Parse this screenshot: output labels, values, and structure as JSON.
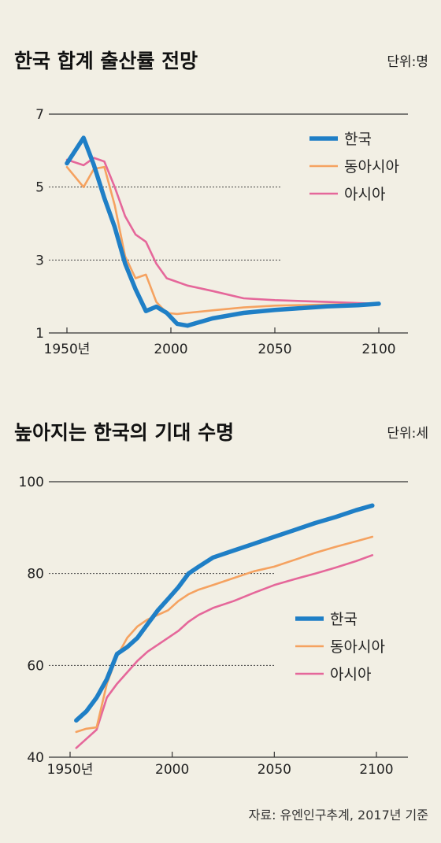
{
  "source": "자료: 유엔인구추계, 2017년 기준",
  "colors": {
    "korea": "#1f7fc6",
    "east_asia": "#f5a260",
    "asia": "#e5679a",
    "background": "#f2efe4"
  },
  "chart_data": [
    {
      "type": "line",
      "title": "한국 합계 출산률 전망",
      "unit": "단위:명",
      "x_tick_labels": [
        "1950년",
        "2000",
        "2050",
        "2100"
      ],
      "x_ticks": [
        1950,
        2000,
        2050,
        2100
      ],
      "y_tick_labels": [
        "1",
        "3",
        "5",
        "7"
      ],
      "y_ticks": [
        1,
        3,
        5,
        7
      ],
      "xlim": [
        1940,
        2115
      ],
      "ylim": [
        1,
        7
      ],
      "series": [
        {
          "name": "한국",
          "key": "korea",
          "x": [
            1950,
            1958,
            1963,
            1968,
            1973,
            1978,
            1983,
            1988,
            1993,
            1998,
            2003,
            2008,
            2020,
            2035,
            2050,
            2075,
            2090,
            2100
          ],
          "y": [
            5.65,
            6.35,
            5.6,
            4.7,
            3.9,
            2.9,
            2.2,
            1.6,
            1.72,
            1.55,
            1.25,
            1.2,
            1.4,
            1.55,
            1.63,
            1.73,
            1.76,
            1.8
          ]
        },
        {
          "name": "동아시아",
          "key": "east_asia",
          "x": [
            1950,
            1958,
            1963,
            1968,
            1973,
            1978,
            1983,
            1988,
            1993,
            1998,
            2003,
            2008,
            2020,
            2035,
            2050,
            2075,
            2090,
            2100
          ],
          "y": [
            5.55,
            5.0,
            5.5,
            5.55,
            4.5,
            3.1,
            2.5,
            2.6,
            1.85,
            1.55,
            1.52,
            1.55,
            1.62,
            1.7,
            1.75,
            1.78,
            1.79,
            1.8
          ]
        },
        {
          "name": "아시아",
          "key": "asia",
          "x": [
            1950,
            1958,
            1963,
            1968,
            1973,
            1978,
            1983,
            1988,
            1993,
            1998,
            2003,
            2008,
            2020,
            2035,
            2050,
            2075,
            2090,
            2100
          ],
          "y": [
            5.75,
            5.6,
            5.8,
            5.7,
            5.0,
            4.2,
            3.7,
            3.5,
            2.9,
            2.5,
            2.4,
            2.3,
            2.15,
            1.95,
            1.9,
            1.85,
            1.82,
            1.8
          ]
        }
      ]
    },
    {
      "type": "line",
      "title": "높아지는 한국의 기대 수명",
      "unit": "단위:세",
      "x_tick_labels": [
        "1950년",
        "2000",
        "2050",
        "2100"
      ],
      "x_ticks": [
        1950,
        2000,
        2050,
        2100
      ],
      "y_tick_labels": [
        "40",
        "60",
        "80",
        "100"
      ],
      "y_ticks": [
        40,
        60,
        80,
        100
      ],
      "xlim": [
        1940,
        2115
      ],
      "ylim": [
        40,
        100
      ],
      "series": [
        {
          "name": "한국",
          "key": "korea",
          "x": [
            1953,
            1958,
            1963,
            1968,
            1973,
            1978,
            1983,
            1988,
            1993,
            1998,
            2003,
            2008,
            2013,
            2020,
            2030,
            2040,
            2050,
            2060,
            2070,
            2080,
            2090,
            2098
          ],
          "y": [
            48,
            50,
            53,
            57,
            62.5,
            64,
            66,
            69,
            72,
            74.5,
            77,
            80,
            81.5,
            83.5,
            85,
            86.5,
            88,
            89.5,
            91,
            92.3,
            93.8,
            94.8
          ]
        },
        {
          "name": "동아시아",
          "key": "east_asia",
          "x": [
            1953,
            1958,
            1963,
            1968,
            1973,
            1978,
            1983,
            1988,
            1993,
            1998,
            2003,
            2008,
            2013,
            2020,
            2030,
            2040,
            2050,
            2060,
            2070,
            2080,
            2090,
            2098
          ],
          "y": [
            45.5,
            46.2,
            46.5,
            56,
            62,
            66,
            68.5,
            70,
            71,
            72,
            74,
            75.5,
            76.5,
            77.5,
            79,
            80.5,
            81.5,
            83,
            84.5,
            85.8,
            87,
            88
          ]
        },
        {
          "name": "아시아",
          "key": "asia",
          "x": [
            1953,
            1958,
            1963,
            1968,
            1973,
            1978,
            1983,
            1988,
            1993,
            1998,
            2003,
            2008,
            2013,
            2020,
            2030,
            2040,
            2050,
            2060,
            2070,
            2080,
            2090,
            2098
          ],
          "y": [
            42,
            44,
            46,
            53,
            56,
            58.5,
            61,
            63,
            64.5,
            66,
            67.5,
            69.5,
            71,
            72.5,
            74,
            75.8,
            77.5,
            78.8,
            80,
            81.3,
            82.7,
            84
          ]
        }
      ]
    }
  ]
}
